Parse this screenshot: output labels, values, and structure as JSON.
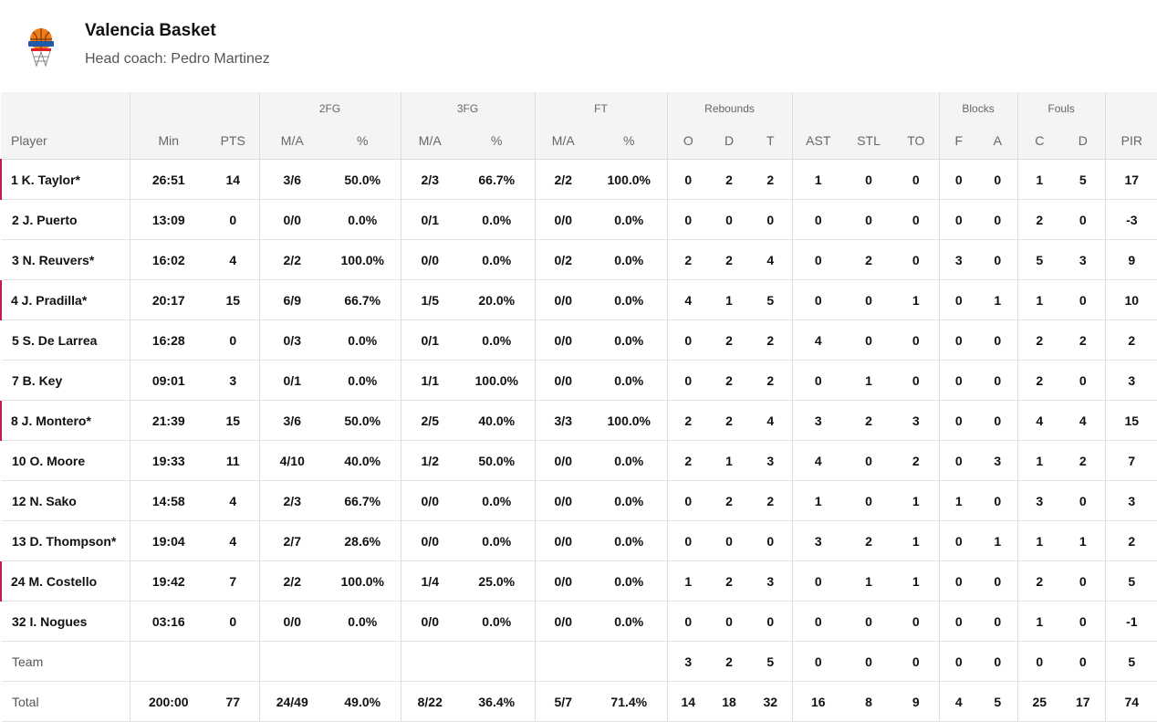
{
  "team": {
    "name": "Valencia Basket",
    "coach": "Head coach: Pedro Martinez",
    "logo_icon": "valencia-basket-logo",
    "accent": "#c2185b"
  },
  "columns": {
    "groups": {
      "fg2": "2FG",
      "fg3": "3FG",
      "ft": "FT",
      "reb": "Rebounds",
      "blk": "Blocks",
      "fouls": "Fouls"
    },
    "sub": [
      "Player",
      "Min",
      "PTS",
      "M/A",
      "%",
      "M/A",
      "%",
      "M/A",
      "%",
      "O",
      "D",
      "T",
      "AST",
      "STL",
      "TO",
      "F",
      "A",
      "C",
      "D",
      "PIR"
    ]
  },
  "rows": [
    {
      "starter": true,
      "cells": [
        "1 K. Taylor*",
        "26:51",
        "14",
        "3/6",
        "50.0%",
        "2/3",
        "66.7%",
        "2/2",
        "100.0%",
        "0",
        "2",
        "2",
        "1",
        "0",
        "0",
        "0",
        "0",
        "1",
        "5",
        "17"
      ]
    },
    {
      "starter": false,
      "cells": [
        "2 J. Puerto",
        "13:09",
        "0",
        "0/0",
        "0.0%",
        "0/1",
        "0.0%",
        "0/0",
        "0.0%",
        "0",
        "0",
        "0",
        "0",
        "0",
        "0",
        "0",
        "0",
        "2",
        "0",
        "-3"
      ]
    },
    {
      "starter": false,
      "cells": [
        "3 N. Reuvers*",
        "16:02",
        "4",
        "2/2",
        "100.0%",
        "0/0",
        "0.0%",
        "0/2",
        "0.0%",
        "2",
        "2",
        "4",
        "0",
        "2",
        "0",
        "3",
        "0",
        "5",
        "3",
        "9"
      ]
    },
    {
      "starter": true,
      "cells": [
        "4 J. Pradilla*",
        "20:17",
        "15",
        "6/9",
        "66.7%",
        "1/5",
        "20.0%",
        "0/0",
        "0.0%",
        "4",
        "1",
        "5",
        "0",
        "0",
        "1",
        "0",
        "1",
        "1",
        "0",
        "10"
      ]
    },
    {
      "starter": false,
      "cells": [
        "5 S. De Larrea",
        "16:28",
        "0",
        "0/3",
        "0.0%",
        "0/1",
        "0.0%",
        "0/0",
        "0.0%",
        "0",
        "2",
        "2",
        "4",
        "0",
        "0",
        "0",
        "0",
        "2",
        "2",
        "2"
      ]
    },
    {
      "starter": false,
      "cells": [
        "7 B. Key",
        "09:01",
        "3",
        "0/1",
        "0.0%",
        "1/1",
        "100.0%",
        "0/0",
        "0.0%",
        "0",
        "2",
        "2",
        "0",
        "1",
        "0",
        "0",
        "0",
        "2",
        "0",
        "3"
      ]
    },
    {
      "starter": true,
      "cells": [
        "8 J. Montero*",
        "21:39",
        "15",
        "3/6",
        "50.0%",
        "2/5",
        "40.0%",
        "3/3",
        "100.0%",
        "2",
        "2",
        "4",
        "3",
        "2",
        "3",
        "0",
        "0",
        "4",
        "4",
        "15"
      ]
    },
    {
      "starter": false,
      "cells": [
        "10 O. Moore",
        "19:33",
        "11",
        "4/10",
        "40.0%",
        "1/2",
        "50.0%",
        "0/0",
        "0.0%",
        "2",
        "1",
        "3",
        "4",
        "0",
        "2",
        "0",
        "3",
        "1",
        "2",
        "7"
      ]
    },
    {
      "starter": false,
      "cells": [
        "12 N. Sako",
        "14:58",
        "4",
        "2/3",
        "66.7%",
        "0/0",
        "0.0%",
        "0/0",
        "0.0%",
        "0",
        "2",
        "2",
        "1",
        "0",
        "1",
        "1",
        "0",
        "3",
        "0",
        "3"
      ]
    },
    {
      "starter": false,
      "cells": [
        "13 D. Thompson*",
        "19:04",
        "4",
        "2/7",
        "28.6%",
        "0/0",
        "0.0%",
        "0/0",
        "0.0%",
        "0",
        "0",
        "0",
        "3",
        "2",
        "1",
        "0",
        "1",
        "1",
        "1",
        "2"
      ]
    },
    {
      "starter": true,
      "cells": [
        "24 M. Costello",
        "19:42",
        "7",
        "2/2",
        "100.0%",
        "1/4",
        "25.0%",
        "0/0",
        "0.0%",
        "1",
        "2",
        "3",
        "0",
        "1",
        "1",
        "0",
        "0",
        "2",
        "0",
        "5"
      ]
    },
    {
      "starter": false,
      "cells": [
        "32 I. Nogues",
        "03:16",
        "0",
        "0/0",
        "0.0%",
        "0/0",
        "0.0%",
        "0/0",
        "0.0%",
        "0",
        "0",
        "0",
        "0",
        "0",
        "0",
        "0",
        "0",
        "1",
        "0",
        "-1"
      ]
    },
    {
      "starter": false,
      "kind": "team",
      "cells": [
        "Team",
        "",
        "",
        "",
        "",
        "",
        "",
        "",
        "",
        "3",
        "2",
        "5",
        "0",
        "0",
        "0",
        "0",
        "0",
        "0",
        "0",
        "5"
      ]
    },
    {
      "starter": false,
      "kind": "total",
      "cells": [
        "Total",
        "200:00",
        "77",
        "24/49",
        "49.0%",
        "8/22",
        "36.4%",
        "5/7",
        "71.4%",
        "14",
        "18",
        "32",
        "16",
        "8",
        "9",
        "4",
        "5",
        "25",
        "17",
        "74"
      ]
    }
  ]
}
